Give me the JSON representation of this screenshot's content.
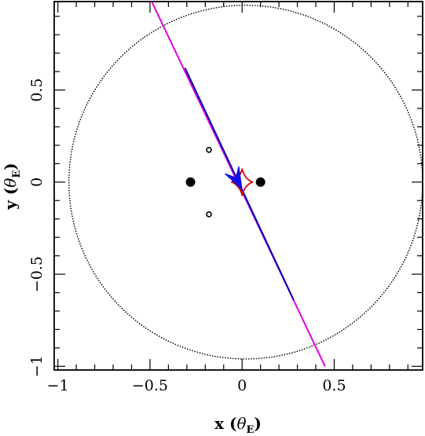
{
  "chart_data": {
    "type": "scatter",
    "xlabel": {
      "pre": "x (",
      "theta": "θ",
      "sub": "E",
      "post": ")"
    },
    "ylabel": {
      "pre": "y (",
      "theta": "θ",
      "sub": "E",
      "post": ")"
    },
    "xlim": [
      -1.02,
      0.98
    ],
    "ylim": [
      -1.02,
      0.98
    ],
    "xticks": [
      {
        "value": -1.0,
        "label": "−1"
      },
      {
        "value": -0.5,
        "label": "−0.5"
      },
      {
        "value": 0.0,
        "label": "0"
      },
      {
        "value": 0.5,
        "label": "0.5"
      }
    ],
    "yticks": [
      {
        "value": -1.0,
        "label": "−1"
      },
      {
        "value": -0.5,
        "label": "−0.5"
      },
      {
        "value": 0.0,
        "label": "0"
      },
      {
        "value": 0.5,
        "label": "0.5"
      }
    ],
    "minor_tick_step": 0.1,
    "grid": false,
    "lens_masses": [
      {
        "x": -0.28,
        "y": 0.0
      },
      {
        "x": 0.1,
        "y": 0.0
      }
    ],
    "planet_images": [
      {
        "x": -0.18,
        "y": 0.175
      },
      {
        "x": -0.18,
        "y": -0.175
      }
    ],
    "einstein_ring": {
      "center": [
        0.02,
        0.0
      ],
      "radius": 0.96
    },
    "caustic": {
      "center": [
        0.0,
        0.0
      ],
      "half_x": 0.06,
      "half_y": 0.075
    },
    "trajectory": {
      "start": [
        -0.5,
        1.0
      ],
      "end": [
        0.45,
        -1.0
      ],
      "blue_from": [
        -0.31,
        0.62
      ],
      "blue_to": [
        0.28,
        -0.64
      ]
    },
    "arrow": {
      "tip": [
        0.0,
        -0.04
      ],
      "direction": [
        0.465,
        -0.885
      ]
    },
    "colors": {
      "lens": "#000000",
      "ring": "#000000",
      "caustic": "#e00000",
      "trajectory_outer": "#e000e0",
      "trajectory_inner": "#0000b0",
      "arrow": "#1010e8"
    }
  }
}
